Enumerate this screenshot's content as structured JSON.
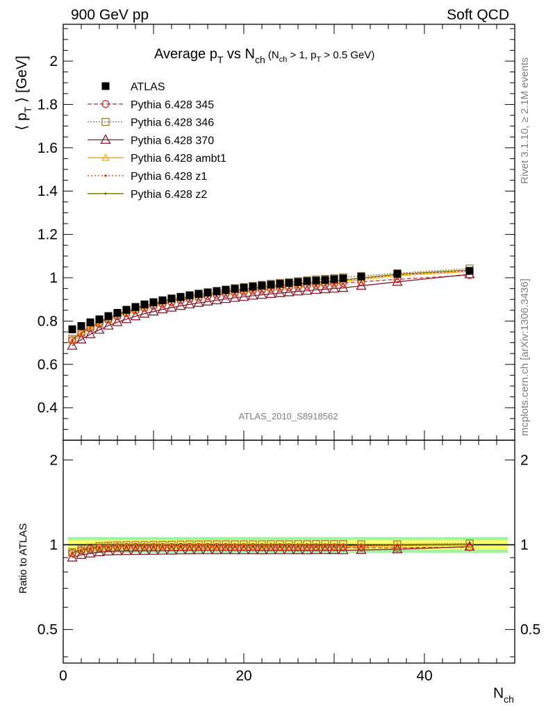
{
  "header": {
    "left": "900 GeV pp",
    "right": "Soft QCD"
  },
  "side_labels": {
    "rivet": "Rivet 3.1.10, ≥ 2.1M events",
    "mcplots": "mcplots.cern.ch [arXiv:1306.3436]"
  },
  "watermark": "ATLAS_2010_S8918562",
  "chart_data": [
    {
      "type": "line",
      "panel": "main",
      "title": {
        "main": "Average p",
        "sub_T": "T",
        "vs": " vs N",
        "sub_ch": "ch",
        "cond_a": " (N",
        "cond_sub_ch": "ch",
        "cond_b": " > 1, p",
        "cond_sub_T": "T",
        "cond_c": " > 0.5 GeV)"
      },
      "ylabel": {
        "a": "⟨ p",
        "sub": "T",
        "b": " ⟩  [GeV]"
      },
      "xlabel": {
        "a": "N",
        "sub": "ch"
      },
      "xlim": [
        0,
        50
      ],
      "ylim": [
        0.25,
        2.17
      ],
      "x_ticks": [
        0,
        20,
        40
      ],
      "y_ticks": [
        0.4,
        0.6,
        0.8,
        1,
        1.2,
        1.4,
        1.6,
        1.8,
        2
      ],
      "y_tick_labels": [
        "0.4",
        "0.6",
        "0.8",
        "1",
        "1.2",
        "1.4",
        "1.6",
        "1.8",
        "2"
      ],
      "x_tick_labels": [
        "0",
        "20",
        "40"
      ],
      "legend_position": "top-left",
      "x": [
        1,
        2,
        3,
        4,
        5,
        6,
        7,
        8,
        9,
        10,
        11,
        12,
        13,
        14,
        15,
        16,
        17,
        18,
        19,
        20,
        21,
        22,
        23,
        24,
        25,
        26,
        27,
        28,
        29,
        30,
        31,
        33,
        37,
        45
      ],
      "series": [
        {
          "name": "ATLAS",
          "color": "#000000",
          "marker": "filled-square",
          "dash": "none",
          "values": [
            0.762,
            0.777,
            0.794,
            0.808,
            0.823,
            0.838,
            0.852,
            0.865,
            0.877,
            0.887,
            0.896,
            0.904,
            0.911,
            0.918,
            0.925,
            0.931,
            0.937,
            0.943,
            0.949,
            0.954,
            0.959,
            0.964,
            0.968,
            0.972,
            0.976,
            0.98,
            0.984,
            0.987,
            0.99,
            0.993,
            0.997,
            1.005,
            1.018,
            1.032
          ]
        },
        {
          "name": "Pythia 6.428 345",
          "color": "#cc3333",
          "marker": "open-circle",
          "dash": "6,3",
          "values": [
            0.712,
            0.742,
            0.766,
            0.787,
            0.806,
            0.822,
            0.836,
            0.849,
            0.86,
            0.87,
            0.879,
            0.887,
            0.895,
            0.902,
            0.908,
            0.914,
            0.92,
            0.925,
            0.93,
            0.935,
            0.94,
            0.944,
            0.948,
            0.952,
            0.956,
            0.959,
            0.963,
            0.966,
            0.969,
            0.972,
            0.975,
            0.981,
            0.993,
            1.012
          ]
        },
        {
          "name": "Pythia 6.428 346",
          "color": "#a07830",
          "marker": "open-square",
          "dash": "2,2",
          "values": [
            0.718,
            0.75,
            0.776,
            0.798,
            0.817,
            0.834,
            0.849,
            0.862,
            0.874,
            0.885,
            0.895,
            0.904,
            0.912,
            0.92,
            0.927,
            0.934,
            0.94,
            0.946,
            0.952,
            0.957,
            0.962,
            0.967,
            0.972,
            0.976,
            0.98,
            0.984,
            0.988,
            0.992,
            0.995,
            0.998,
            1.002,
            1.008,
            1.021,
            1.043
          ]
        },
        {
          "name": "Pythia 6.428 370",
          "color": "#8b1a2e",
          "marker": "open-triangle",
          "dash": "none",
          "values": [
            0.686,
            0.715,
            0.739,
            0.76,
            0.779,
            0.795,
            0.809,
            0.822,
            0.834,
            0.844,
            0.854,
            0.862,
            0.87,
            0.877,
            0.884,
            0.89,
            0.896,
            0.902,
            0.907,
            0.912,
            0.917,
            0.921,
            0.925,
            0.929,
            0.933,
            0.937,
            0.94,
            0.944,
            0.947,
            0.95,
            0.953,
            0.963,
            0.981,
            1.016
          ]
        },
        {
          "name": "Pythia 6.428 ambt1",
          "color": "#ffa500",
          "marker": "open-triangle-small",
          "dash": "none",
          "values": [
            0.708,
            0.739,
            0.765,
            0.787,
            0.806,
            0.823,
            0.838,
            0.851,
            0.863,
            0.873,
            0.883,
            0.891,
            0.899,
            0.906,
            0.913,
            0.919,
            0.925,
            0.931,
            0.936,
            0.941,
            0.946,
            0.95,
            0.955,
            0.959,
            0.962,
            0.966,
            0.97,
            0.973,
            0.976,
            0.979,
            0.983,
            0.992,
            1.009,
            1.029
          ]
        },
        {
          "name": "Pythia 6.428 z1",
          "color": "#dd2200",
          "marker": "dot",
          "dash": "2,3",
          "values": [
            0.712,
            0.744,
            0.77,
            0.792,
            0.811,
            0.828,
            0.843,
            0.856,
            0.868,
            0.878,
            0.888,
            0.896,
            0.904,
            0.911,
            0.918,
            0.924,
            0.93,
            0.936,
            0.941,
            0.946,
            0.951,
            0.955,
            0.96,
            0.964,
            0.967,
            0.971,
            0.975,
            0.978,
            0.981,
            0.984,
            0.988,
            0.997,
            1.014,
            1.033
          ]
        },
        {
          "name": "Pythia 6.428 z2",
          "color": "#707000",
          "marker": "dot",
          "dash": "none",
          "values": [
            0.714,
            0.746,
            0.772,
            0.794,
            0.813,
            0.83,
            0.845,
            0.858,
            0.87,
            0.88,
            0.89,
            0.898,
            0.906,
            0.913,
            0.92,
            0.926,
            0.932,
            0.938,
            0.943,
            0.948,
            0.953,
            0.957,
            0.962,
            0.966,
            0.969,
            0.973,
            0.977,
            0.98,
            0.983,
            0.986,
            0.99,
            0.999,
            1.016,
            1.036
          ]
        }
      ]
    },
    {
      "type": "line",
      "panel": "ratio",
      "ylabel": "Ratio to ATLAS",
      "xlim": [
        0,
        50
      ],
      "ylim": [
        0.38,
        2.35
      ],
      "log_y": true,
      "y_ticks": [
        0.5,
        1,
        2
      ],
      "y_tick_labels": [
        "0.5",
        "1",
        "2"
      ],
      "band_inner_color": "#ffff66",
      "band_outer_color": "#90ee90",
      "band_inner_halfwidth": 0.04,
      "band_outer_halfwidth": 0.065
    }
  ]
}
